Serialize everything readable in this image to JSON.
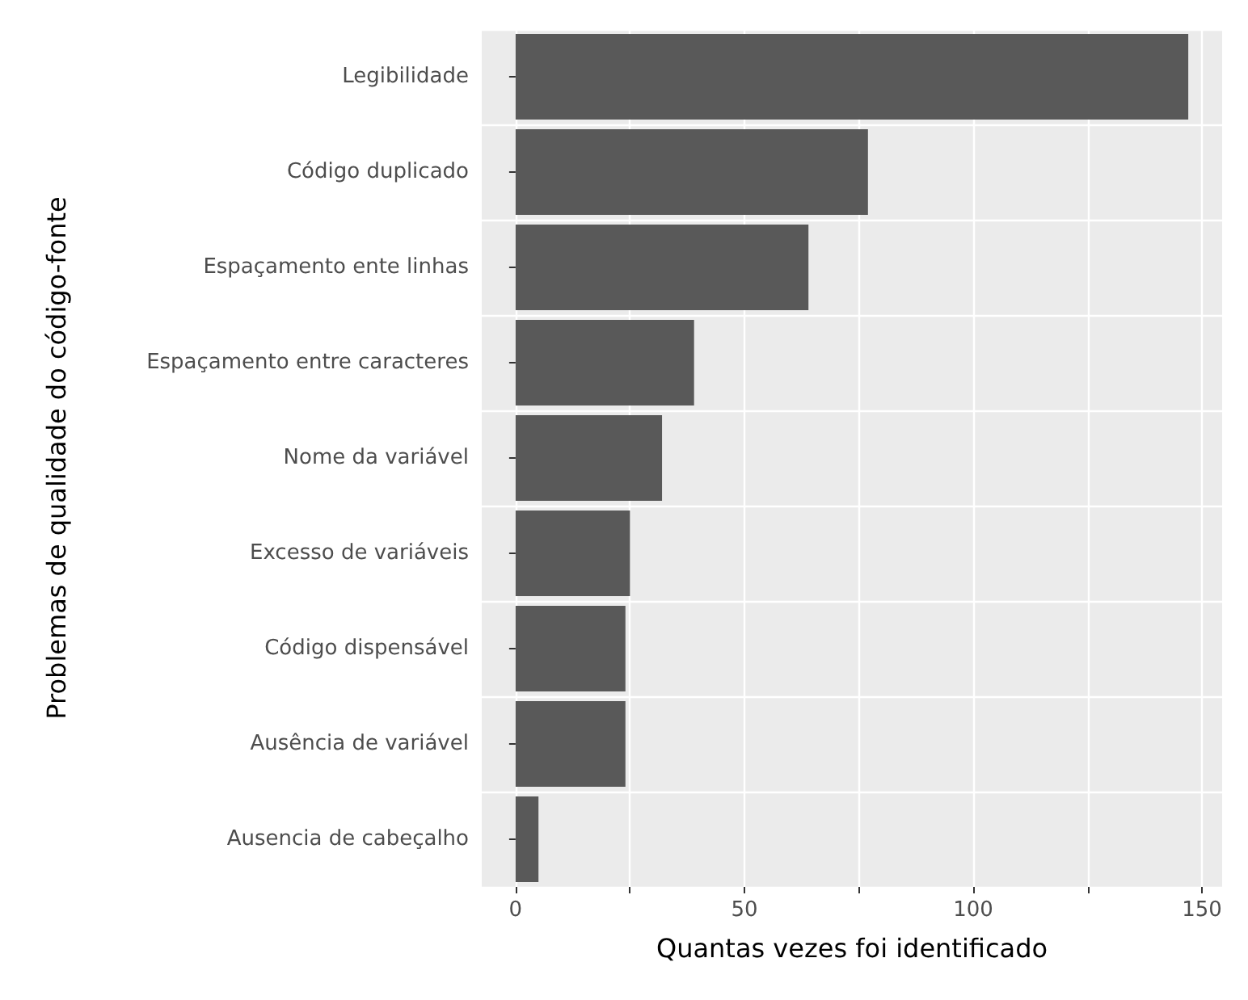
{
  "chart_data": {
    "type": "bar",
    "orientation": "horizontal",
    "xlabel": "Quantas vezes foi identificado",
    "ylabel": "Problemas de qualidade do código-fonte",
    "categories": [
      "Legibilidade",
      "Código duplicado",
      "Espaçamento ente linhas",
      "Espaçamento entre caracteres",
      "Nome da variável",
      "Excesso de variáveis",
      "Código dispensável",
      "Ausência de variável",
      "Ausencia de cabeçalho"
    ],
    "values": [
      147,
      77,
      64,
      39,
      32,
      25,
      24,
      24,
      5
    ],
    "color": "#595959",
    "xlim": [
      -7.4,
      154.4
    ],
    "xticks": [
      0,
      {
        "value": 25,
        "label": null
      },
      50,
      {
        "value": 75,
        "label": null
      },
      100,
      {
        "value": 125,
        "label": null
      },
      150
    ],
    "grid": true
  }
}
